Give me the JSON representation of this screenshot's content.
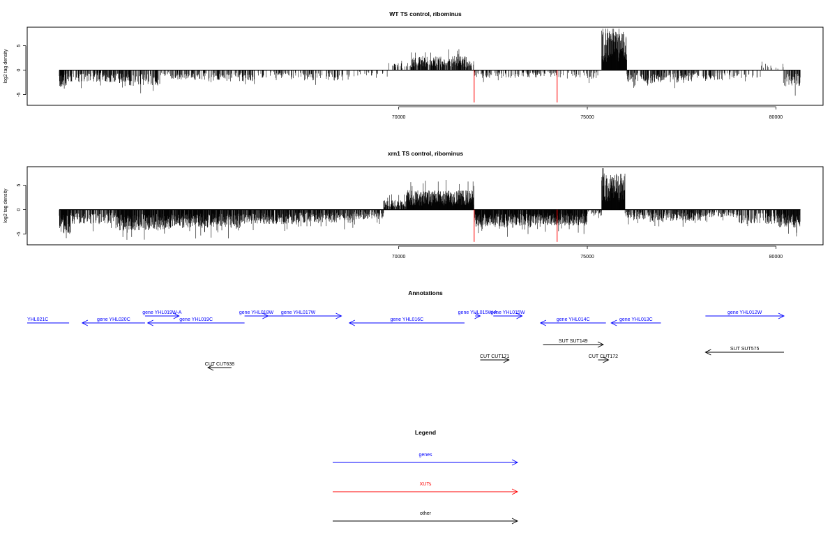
{
  "colors": {
    "gene": "#0000ff",
    "xut": "#ff0000",
    "other": "#000000",
    "signal": "#000000"
  },
  "chart_data": [
    {
      "type": "bar",
      "title": "WT TS control, ribominus",
      "ylabel": "log2 tag density",
      "xlim": [
        60150,
        81250
      ],
      "ylim": [
        -7.2,
        8.8
      ],
      "x_ticks": [
        70000,
        75000,
        80000
      ],
      "y_ticks": [
        -5,
        0,
        5
      ],
      "x_tick_labels": [
        "70000",
        "75000",
        "80000"
      ],
      "y_tick_labels": [
        "-5",
        "0",
        "5"
      ],
      "grid": false,
      "track_start": 61000,
      "track_end": 80650,
      "density_regions": [
        {
          "start": 61000,
          "end": 61200,
          "mean": -2.2,
          "density": 0.7
        },
        {
          "start": 61200,
          "end": 62800,
          "mean": -1.5,
          "density": 0.45
        },
        {
          "start": 62800,
          "end": 63700,
          "mean": -2.0,
          "density": 0.5
        },
        {
          "start": 63700,
          "end": 64800,
          "mean": -1.2,
          "density": 0.3
        },
        {
          "start": 64800,
          "end": 66200,
          "mean": -1.4,
          "density": 0.35
        },
        {
          "start": 66200,
          "end": 67500,
          "mean": -1.0,
          "density": 0.2
        },
        {
          "start": 67500,
          "end": 68800,
          "mean": -1.3,
          "density": 0.3
        },
        {
          "start": 68800,
          "end": 69700,
          "mean": -0.8,
          "density": 0.15
        },
        {
          "start": 69700,
          "end": 70300,
          "mean": 0.9,
          "density": 0.2
        },
        {
          "start": 70300,
          "end": 71800,
          "mean": 1.7,
          "density": 0.7
        },
        {
          "start": 71800,
          "end": 72000,
          "mean": 1.2,
          "density": 0.5
        },
        {
          "start": 72000,
          "end": 73200,
          "mean": -1.0,
          "density": 0.25
        },
        {
          "start": 73200,
          "end": 74300,
          "mean": -0.9,
          "density": 0.25
        },
        {
          "start": 74300,
          "end": 75300,
          "mean": -1.1,
          "density": 0.25
        },
        {
          "start": 75380,
          "end": 76050,
          "mean": 4.8,
          "density": 1.0
        },
        {
          "start": 76050,
          "end": 76500,
          "mean": -1.5,
          "density": 0.45
        },
        {
          "start": 76500,
          "end": 77800,
          "mean": -1.6,
          "density": 0.45
        },
        {
          "start": 77800,
          "end": 78800,
          "mean": -1.2,
          "density": 0.3
        },
        {
          "start": 78800,
          "end": 79600,
          "mean": -1.0,
          "density": 0.2
        },
        {
          "start": 79600,
          "end": 80200,
          "mean": 0.8,
          "density": 0.2
        },
        {
          "start": 80200,
          "end": 80650,
          "mean": -2.0,
          "density": 0.6
        }
      ],
      "xut_marks": [
        {
          "x": 72000,
          "y": -6.6
        },
        {
          "x": 74200,
          "y": -6.6
        }
      ]
    },
    {
      "type": "bar",
      "title": "xrn1 TS control, ribominus",
      "ylabel": "log2 tag density",
      "xlim": [
        60150,
        81250
      ],
      "ylim": [
        -7.2,
        8.8
      ],
      "x_ticks": [
        70000,
        75000,
        80000
      ],
      "y_ticks": [
        -5,
        0,
        5
      ],
      "x_tick_labels": [
        "70000",
        "75000",
        "80000"
      ],
      "y_tick_labels": [
        "-5",
        "0",
        "5"
      ],
      "grid": false,
      "track_start": 61000,
      "track_end": 80650,
      "density_regions": [
        {
          "start": 61000,
          "end": 61300,
          "mean": -3.0,
          "density": 0.9
        },
        {
          "start": 61300,
          "end": 62500,
          "mean": -1.8,
          "density": 0.5
        },
        {
          "start": 62500,
          "end": 63900,
          "mean": -2.6,
          "density": 0.85
        },
        {
          "start": 63900,
          "end": 65800,
          "mean": -2.3,
          "density": 0.85
        },
        {
          "start": 65800,
          "end": 67200,
          "mean": -1.8,
          "density": 0.7
        },
        {
          "start": 67200,
          "end": 68800,
          "mean": -1.6,
          "density": 0.7
        },
        {
          "start": 68800,
          "end": 69600,
          "mean": -1.2,
          "density": 0.5
        },
        {
          "start": 69600,
          "end": 70200,
          "mean": 1.2,
          "density": 0.7
        },
        {
          "start": 70200,
          "end": 72000,
          "mean": 2.4,
          "density": 1.0
        },
        {
          "start": 72000,
          "end": 73500,
          "mean": -2.2,
          "density": 0.9
        },
        {
          "start": 73500,
          "end": 75000,
          "mean": -2.0,
          "density": 0.9
        },
        {
          "start": 75000,
          "end": 75380,
          "mean": -0.8,
          "density": 0.3
        },
        {
          "start": 75380,
          "end": 76000,
          "mean": 4.5,
          "density": 1.0
        },
        {
          "start": 76000,
          "end": 76600,
          "mean": -1.2,
          "density": 0.5
        },
        {
          "start": 76600,
          "end": 78000,
          "mean": -1.4,
          "density": 0.6
        },
        {
          "start": 78000,
          "end": 79000,
          "mean": -1.0,
          "density": 0.4
        },
        {
          "start": 79000,
          "end": 80000,
          "mean": -1.8,
          "density": 0.5
        },
        {
          "start": 80000,
          "end": 80650,
          "mean": -2.2,
          "density": 0.8
        }
      ],
      "xut_marks": [
        {
          "x": 72000,
          "y": -6.6
        },
        {
          "x": 74200,
          "y": -6.6
        }
      ]
    }
  ],
  "annotations": {
    "title": "Annotations",
    "features": [
      {
        "label": "YHL021C",
        "start": 60250,
        "end": 61050,
        "strand": "plain",
        "type": "gene",
        "row": 1
      },
      {
        "label": "gene YHL020C",
        "start": 61300,
        "end": 62500,
        "strand": "-",
        "type": "gene",
        "row": 1
      },
      {
        "label": "gene YHL019W-A",
        "start": 62500,
        "end": 63150,
        "strand": "+",
        "type": "gene",
        "row": 0
      },
      {
        "label": "gene YHL019C",
        "start": 62550,
        "end": 64400,
        "strand": "-",
        "type": "gene",
        "row": 1
      },
      {
        "label": "gene YHL018W",
        "start": 64400,
        "end": 64850,
        "strand": "+",
        "type": "gene",
        "row": 0
      },
      {
        "label": "gene YHL017W",
        "start": 64600,
        "end": 66250,
        "strand": "+",
        "type": "gene",
        "row": 0
      },
      {
        "label": "gene YHL016C",
        "start": 66400,
        "end": 68600,
        "strand": "-",
        "type": "gene",
        "row": 1
      },
      {
        "label": "gene YHL015W-A",
        "start": 68800,
        "end": 68900,
        "strand": "+",
        "type": "gene",
        "row": 0
      },
      {
        "label": "gene YHL015W",
        "start": 69150,
        "end": 69700,
        "strand": "+",
        "type": "gene",
        "row": 0
      },
      {
        "label": "gene YHL014C",
        "start": 70050,
        "end": 71300,
        "strand": "-",
        "type": "gene",
        "row": 1
      },
      {
        "label": "gene YHL013C",
        "start": 71400,
        "end": 72350,
        "strand": "-",
        "type": "gene",
        "row": 1
      },
      {
        "label": "gene YHL012W",
        "start": 73200,
        "end": 74700,
        "strand": "+",
        "type": "gene",
        "row": 0
      },
      {
        "label": "SUT SUT149",
        "start": 70100,
        "end": 71250,
        "strand": "+",
        "type": "other",
        "row": 2
      },
      {
        "label": "SUT SUT575",
        "start": 73200,
        "end": 74700,
        "strand": "-",
        "type": "other",
        "row": 3
      },
      {
        "label": "CUT CUT171",
        "start": 68900,
        "end": 69450,
        "strand": "+",
        "type": "other",
        "row": 4
      },
      {
        "label": "CUT CUT172",
        "start": 71150,
        "end": 71350,
        "strand": "+",
        "type": "other",
        "row": 4
      },
      {
        "label": "CUT CUT638",
        "start": 63700,
        "end": 64150,
        "strand": "-",
        "type": "other",
        "row": 5
      }
    ]
  },
  "legend": {
    "title": "Legend",
    "items": [
      {
        "label": "genes",
        "color": "#0000ff"
      },
      {
        "label": "XUTs",
        "color": "#ff0000"
      },
      {
        "label": "other",
        "color": "#000000"
      }
    ]
  }
}
